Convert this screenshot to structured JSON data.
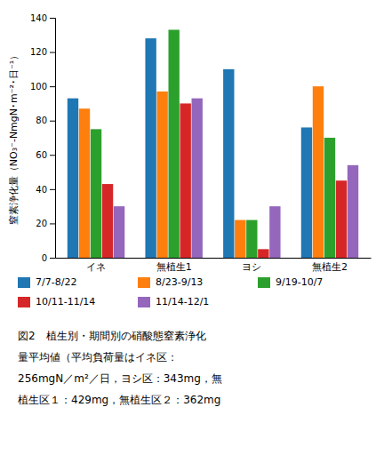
{
  "chart_data": {
    "type": "bar",
    "title": [
      "図2　植生別・期間別の硝酸態窒素浄化",
      "量平均値（平均負荷量はイネ区：",
      "256mgN／m²／日，ヨシ区：343mg，無",
      "植生区１：429mg，無植生区２：362mg"
    ],
    "ylabel": "窒素浄化量（NO₃⁻-NmgN･m⁻²･日⁻¹）",
    "categories": [
      "イネ",
      "無植生1",
      "ヨシ",
      "無植生2"
    ],
    "series": [
      {
        "name": "7/7-8/22",
        "values": [
          93,
          128,
          110,
          76
        ]
      },
      {
        "name": "8/23-9/13",
        "values": [
          87,
          97,
          22,
          100
        ]
      },
      {
        "name": "9/19-10/7",
        "values": [
          75,
          133,
          22,
          70
        ]
      },
      {
        "name": "10/11-11/14",
        "values": [
          43,
          90,
          5,
          45
        ]
      },
      {
        "name": "11/14-12/1",
        "values": [
          30,
          93,
          30,
          54
        ]
      }
    ],
    "ylim": [
      0,
      140
    ],
    "yticks": [
      0,
      20,
      40,
      60,
      80,
      100,
      120,
      140
    ],
    "grid": false,
    "legend": "bottom"
  }
}
